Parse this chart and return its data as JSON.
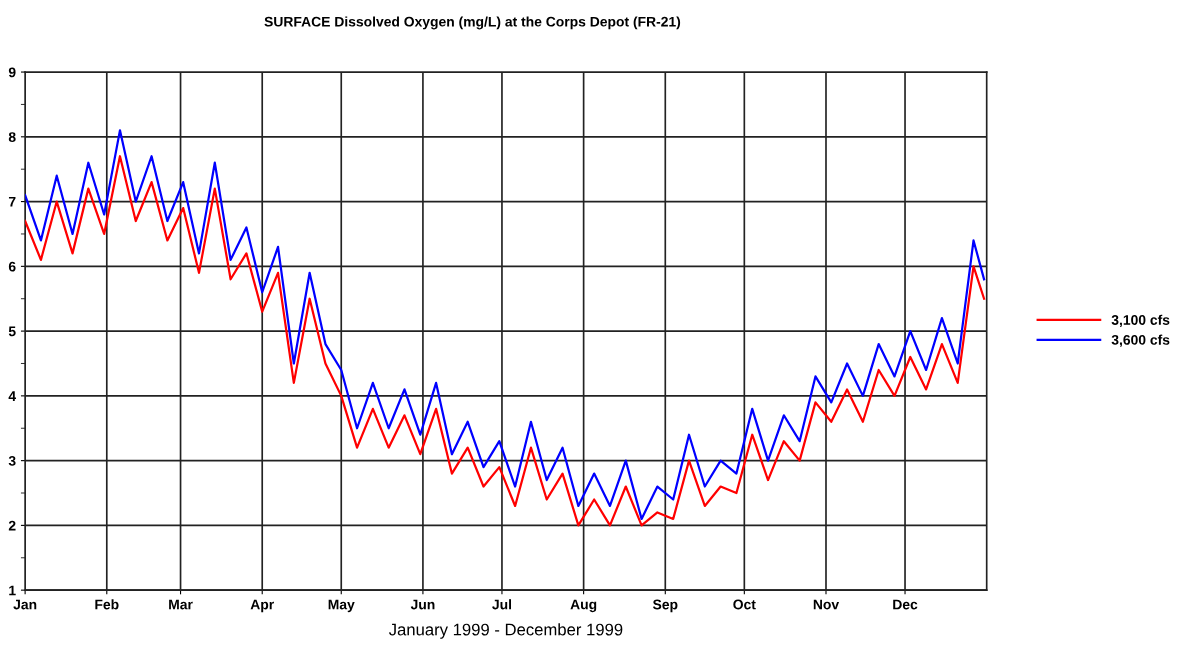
{
  "chart_data": {
    "type": "line",
    "title": "SURFACE Dissolved Oxygen (mg/L) at the Corps Depot (FR-21)",
    "xlabel": "January 1999 - December 1999",
    "x": [
      "1999-01-01",
      "1999-01-07",
      "1999-01-13",
      "1999-01-19",
      "1999-01-25",
      "1999-01-31",
      "1999-02-06",
      "1999-02-12",
      "1999-02-18",
      "1999-02-24",
      "1999-03-02",
      "1999-03-08",
      "1999-03-14",
      "1999-03-20",
      "1999-03-26",
      "1999-04-01",
      "1999-04-07",
      "1999-04-13",
      "1999-04-19",
      "1999-04-25",
      "1999-05-01",
      "1999-05-07",
      "1999-05-13",
      "1999-05-19",
      "1999-05-25",
      "1999-05-31",
      "1999-06-06",
      "1999-06-12",
      "1999-06-18",
      "1999-06-24",
      "1999-06-30",
      "1999-07-06",
      "1999-07-12",
      "1999-07-18",
      "1999-07-24",
      "1999-07-30",
      "1999-08-05",
      "1999-08-11",
      "1999-08-17",
      "1999-08-23",
      "1999-08-29",
      "1999-09-04",
      "1999-09-10",
      "1999-09-16",
      "1999-09-22",
      "1999-09-28",
      "1999-10-04",
      "1999-10-10",
      "1999-10-16",
      "1999-10-22",
      "1999-10-28",
      "1999-11-03",
      "1999-11-09",
      "1999-11-15",
      "1999-11-21",
      "1999-11-27",
      "1999-12-03",
      "1999-12-09",
      "1999-12-15",
      "1999-12-21",
      "1999-12-27",
      "1999-12-31"
    ],
    "series": [
      {
        "name": "3,100 cfs",
        "color": "#ff0000",
        "values": [
          6.7,
          6.1,
          7.0,
          6.2,
          7.2,
          6.5,
          7.7,
          6.7,
          7.3,
          6.4,
          6.9,
          5.9,
          7.2,
          5.8,
          6.2,
          5.3,
          5.9,
          4.2,
          5.5,
          4.5,
          4.0,
          3.2,
          3.8,
          3.2,
          3.7,
          3.1,
          3.8,
          2.8,
          3.2,
          2.6,
          2.9,
          2.3,
          3.2,
          2.4,
          2.8,
          2.0,
          2.4,
          2.0,
          2.6,
          2.0,
          2.2,
          2.1,
          3.0,
          2.3,
          2.6,
          2.5,
          3.4,
          2.7,
          3.3,
          3.0,
          3.9,
          3.6,
          4.1,
          3.6,
          4.4,
          4.0,
          4.6,
          4.1,
          4.8,
          4.2,
          6.0,
          5.5
        ]
      },
      {
        "name": "3,600 cfs",
        "color": "#0000ff",
        "values": [
          7.1,
          6.4,
          7.4,
          6.5,
          7.6,
          6.8,
          8.1,
          7.0,
          7.7,
          6.7,
          7.3,
          6.2,
          7.6,
          6.1,
          6.6,
          5.6,
          6.3,
          4.5,
          5.9,
          4.8,
          4.4,
          3.5,
          4.2,
          3.5,
          4.1,
          3.4,
          4.2,
          3.1,
          3.6,
          2.9,
          3.3,
          2.6,
          3.6,
          2.7,
          3.2,
          2.3,
          2.8,
          2.3,
          3.0,
          2.1,
          2.6,
          2.4,
          3.4,
          2.6,
          3.0,
          2.8,
          3.8,
          3.0,
          3.7,
          3.3,
          4.3,
          3.9,
          4.5,
          4.0,
          4.8,
          4.3,
          5.0,
          4.4,
          5.2,
          4.5,
          6.4,
          5.8
        ]
      }
    ],
    "xlim": [
      "1999-01-01",
      "2000-01-01"
    ],
    "xticks": [
      {
        "value": "1999-01-01",
        "label": "Jan"
      },
      {
        "value": "1999-02-01",
        "label": "Feb"
      },
      {
        "value": "1999-03-01",
        "label": "Mar"
      },
      {
        "value": "1999-04-01",
        "label": "Apr"
      },
      {
        "value": "1999-05-01",
        "label": "May"
      },
      {
        "value": "1999-06-01",
        "label": "Jun"
      },
      {
        "value": "1999-07-01",
        "label": "Jul"
      },
      {
        "value": "1999-08-01",
        "label": "Aug"
      },
      {
        "value": "1999-09-01",
        "label": "Sep"
      },
      {
        "value": "1999-10-01",
        "label": "Oct"
      },
      {
        "value": "1999-11-01",
        "label": "Nov"
      },
      {
        "value": "1999-12-01",
        "label": "Dec"
      }
    ],
    "ylim": [
      1,
      9
    ],
    "yticks": [
      1,
      {
        "value": 1.5,
        "label": null
      },
      2,
      {
        "value": 2.5,
        "label": null
      },
      3,
      {
        "value": 3.5,
        "label": null
      },
      4,
      {
        "value": 4.5,
        "label": null
      },
      5,
      {
        "value": 5.5,
        "label": null
      },
      6,
      {
        "value": 6.5,
        "label": null
      },
      7,
      {
        "value": 7.5,
        "label": null
      },
      8,
      {
        "value": 8.5,
        "label": null
      },
      9
    ],
    "grid": true,
    "legend": "right",
    "marker": "none",
    "line_style": "solid"
  }
}
